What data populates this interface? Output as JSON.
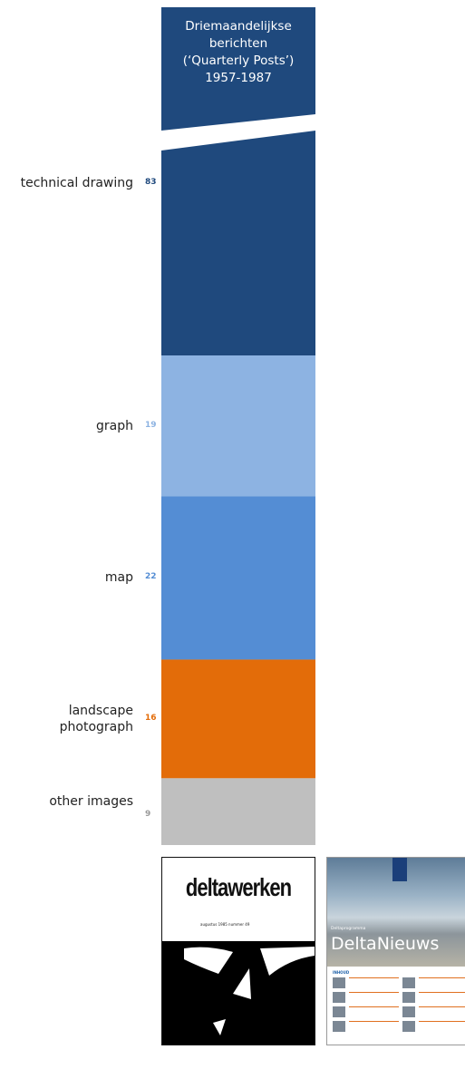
{
  "chart_data": {
    "type": "bar",
    "stacked": true,
    "title": "Driemaandelijkse\nberichten\n(‘Quarterly Posts’)\n1957-1987",
    "categories": [
      "technical drawing",
      "graph",
      "map",
      "landscape photograph",
      "other images"
    ],
    "category_display": [
      "technical drawing",
      "graph",
      "map",
      "landscape\nphotograph",
      "other images"
    ],
    "values": [
      83,
      19,
      22,
      16,
      9
    ],
    "value_labels": [
      "83",
      "19",
      "22",
      "16",
      "9"
    ],
    "colors": [
      "#1f497d",
      "#8db3e2",
      "#548dd4",
      "#e36c09",
      "#bfbfbf"
    ],
    "axis_break": true,
    "legend": "none"
  },
  "thumbnails": {
    "left": {
      "brand": "deltawerken",
      "subtitle": "augustus 1985 nummer 49"
    },
    "right": {
      "kicker": "Deltaprogramma",
      "brand": "DeltaNieuws",
      "section": "INHOUD"
    }
  }
}
